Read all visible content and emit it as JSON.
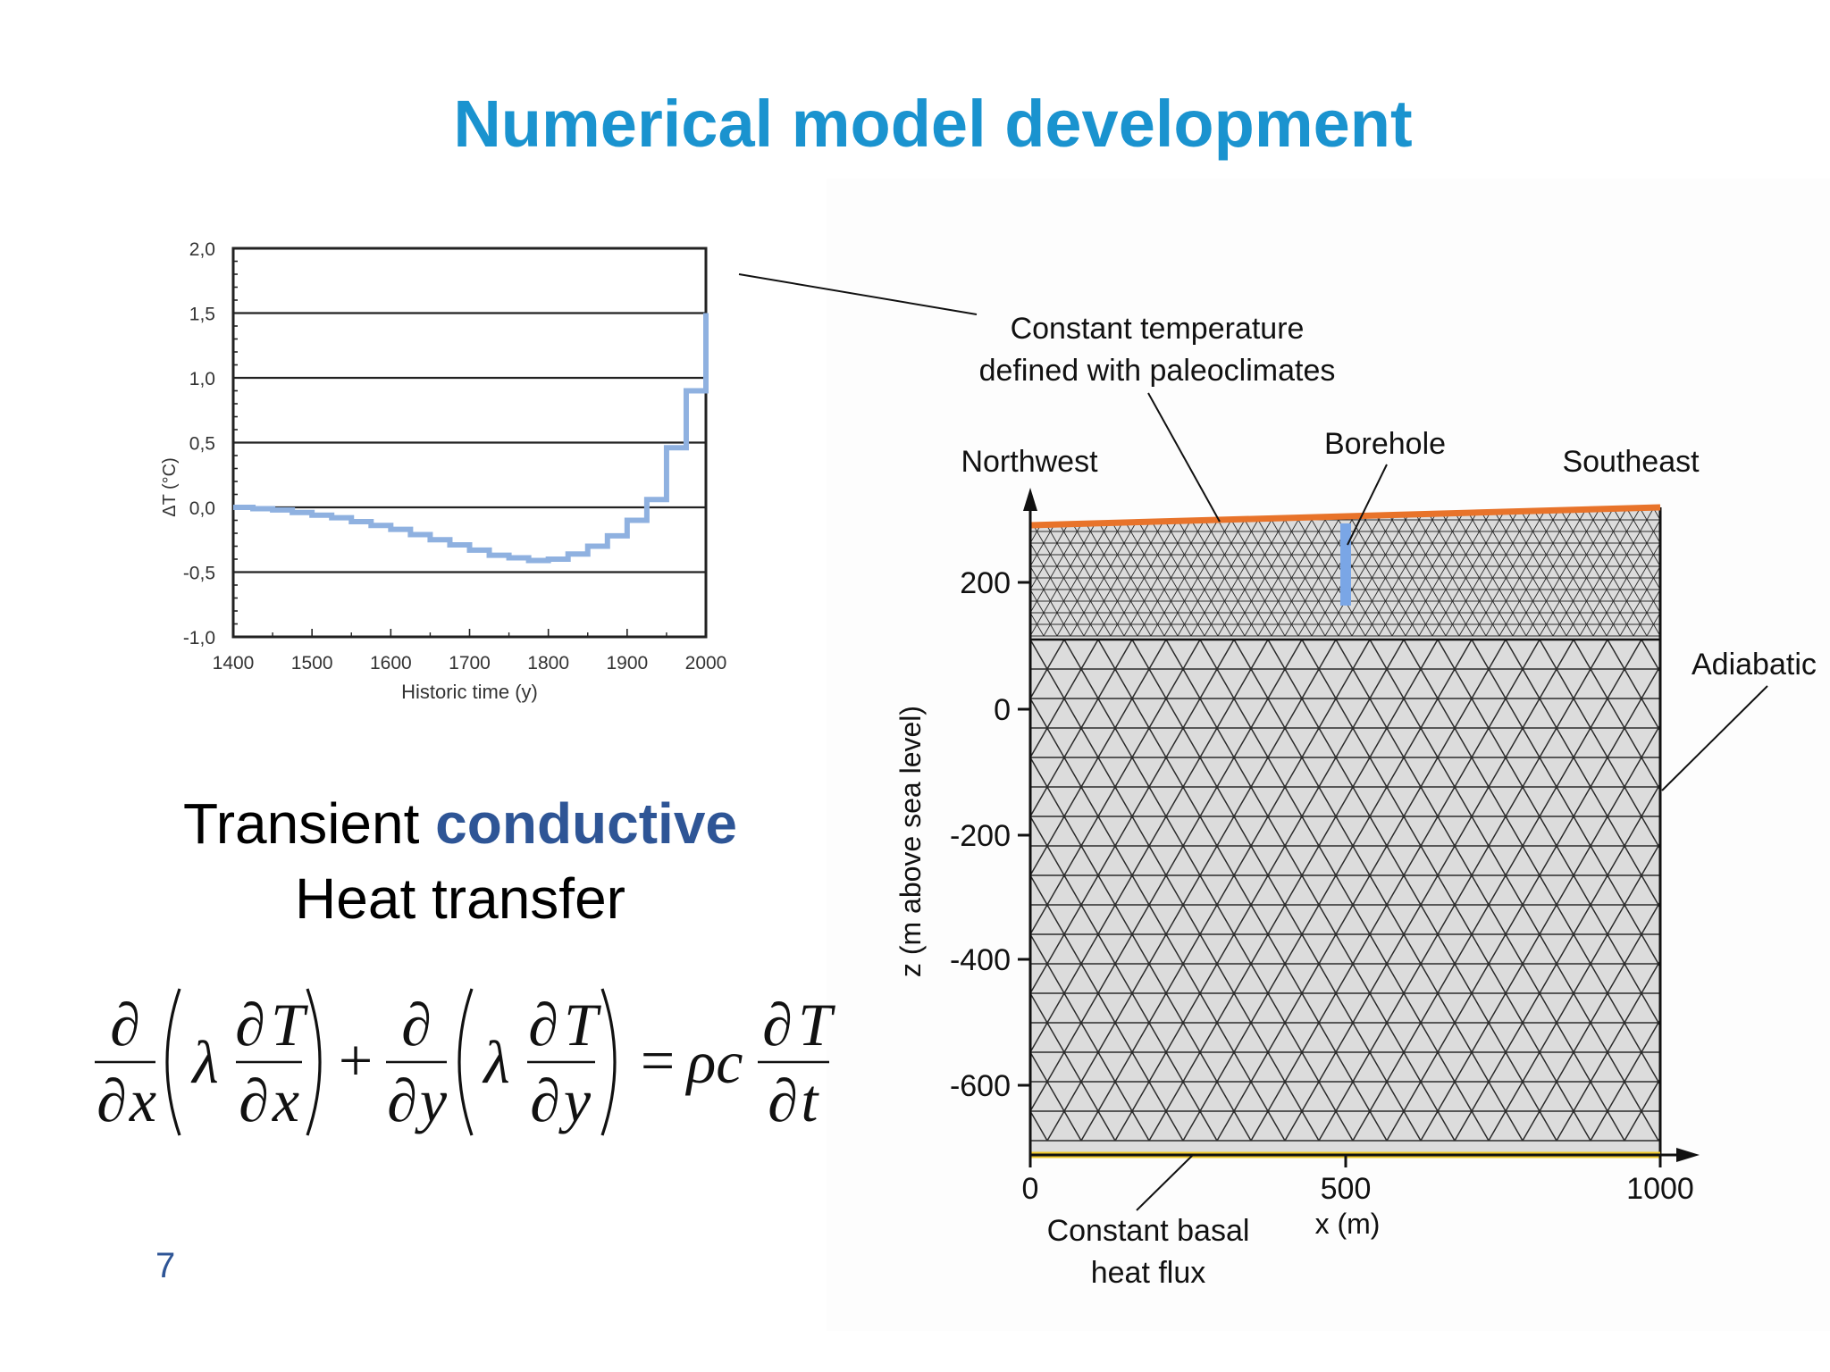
{
  "slide": {
    "title": "Numerical model development",
    "heading_line1_prefix": "Transient ",
    "heading_line1_accent": "conductive",
    "heading_line2": "Heat transfer",
    "page_number": "7"
  },
  "colors": {
    "title": "#1a93cf",
    "accent": "#2e5596",
    "series": "#8fb1e0",
    "top_boundary": "#e8732a",
    "basal_boundary": "#f1c92a",
    "mesh_fill": "#dcdcdc"
  },
  "chart_data": {
    "type": "line",
    "title": "",
    "xlabel": "Historic time (y)",
    "ylabel": "ΔT (°C)",
    "xlim": [
      1400,
      2000
    ],
    "ylim": [
      -1.0,
      2.0
    ],
    "x_ticks": [
      "1400",
      "1500",
      "1600",
      "1700",
      "1800",
      "1900",
      "2000"
    ],
    "y_ticks": [
      "2,0",
      "1,5",
      "1,0",
      "0,5",
      "0,0",
      "-0,5",
      "-1,0"
    ],
    "grid": "horizontal",
    "series": [
      {
        "x": [
          1400,
          1425,
          1450,
          1475,
          1500,
          1525,
          1550,
          1575,
          1600,
          1625,
          1650,
          1675,
          1700,
          1725,
          1750,
          1775,
          1800,
          1825,
          1850,
          1875,
          1900,
          1925,
          1950,
          1975,
          2000
        ],
        "y": [
          0.0,
          -0.01,
          -0.02,
          -0.04,
          -0.06,
          -0.08,
          -0.11,
          -0.14,
          -0.17,
          -0.21,
          -0.25,
          -0.29,
          -0.33,
          -0.37,
          -0.39,
          -0.41,
          -0.4,
          -0.36,
          -0.3,
          -0.22,
          -0.1,
          0.06,
          0.46,
          0.9,
          1.5
        ]
      }
    ]
  },
  "model": {
    "label_constant_temperature_line1": "Constant temperature",
    "label_constant_temperature_line2": "defined with paleoclimates",
    "label_northwest": "Northwest",
    "label_southeast": "Southeast",
    "label_borehole": "Borehole",
    "label_adiabatic": "Adiabatic",
    "label_basal_line1": "Constant basal",
    "label_basal_line2": "heat flux",
    "y_axis_label": "z (m above sea level)",
    "x_axis_label": "x (m)",
    "z_ticks": [
      "200",
      "0",
      "-200",
      "-400",
      "-600"
    ],
    "x_ticks": [
      "0",
      "500",
      "1000"
    ]
  },
  "equation": {
    "partial": "∂",
    "T": "T",
    "x": "x",
    "y": "y",
    "t": "t",
    "lambda": "λ",
    "plus": "+",
    "equals": "=",
    "rho_c": "ρc"
  }
}
